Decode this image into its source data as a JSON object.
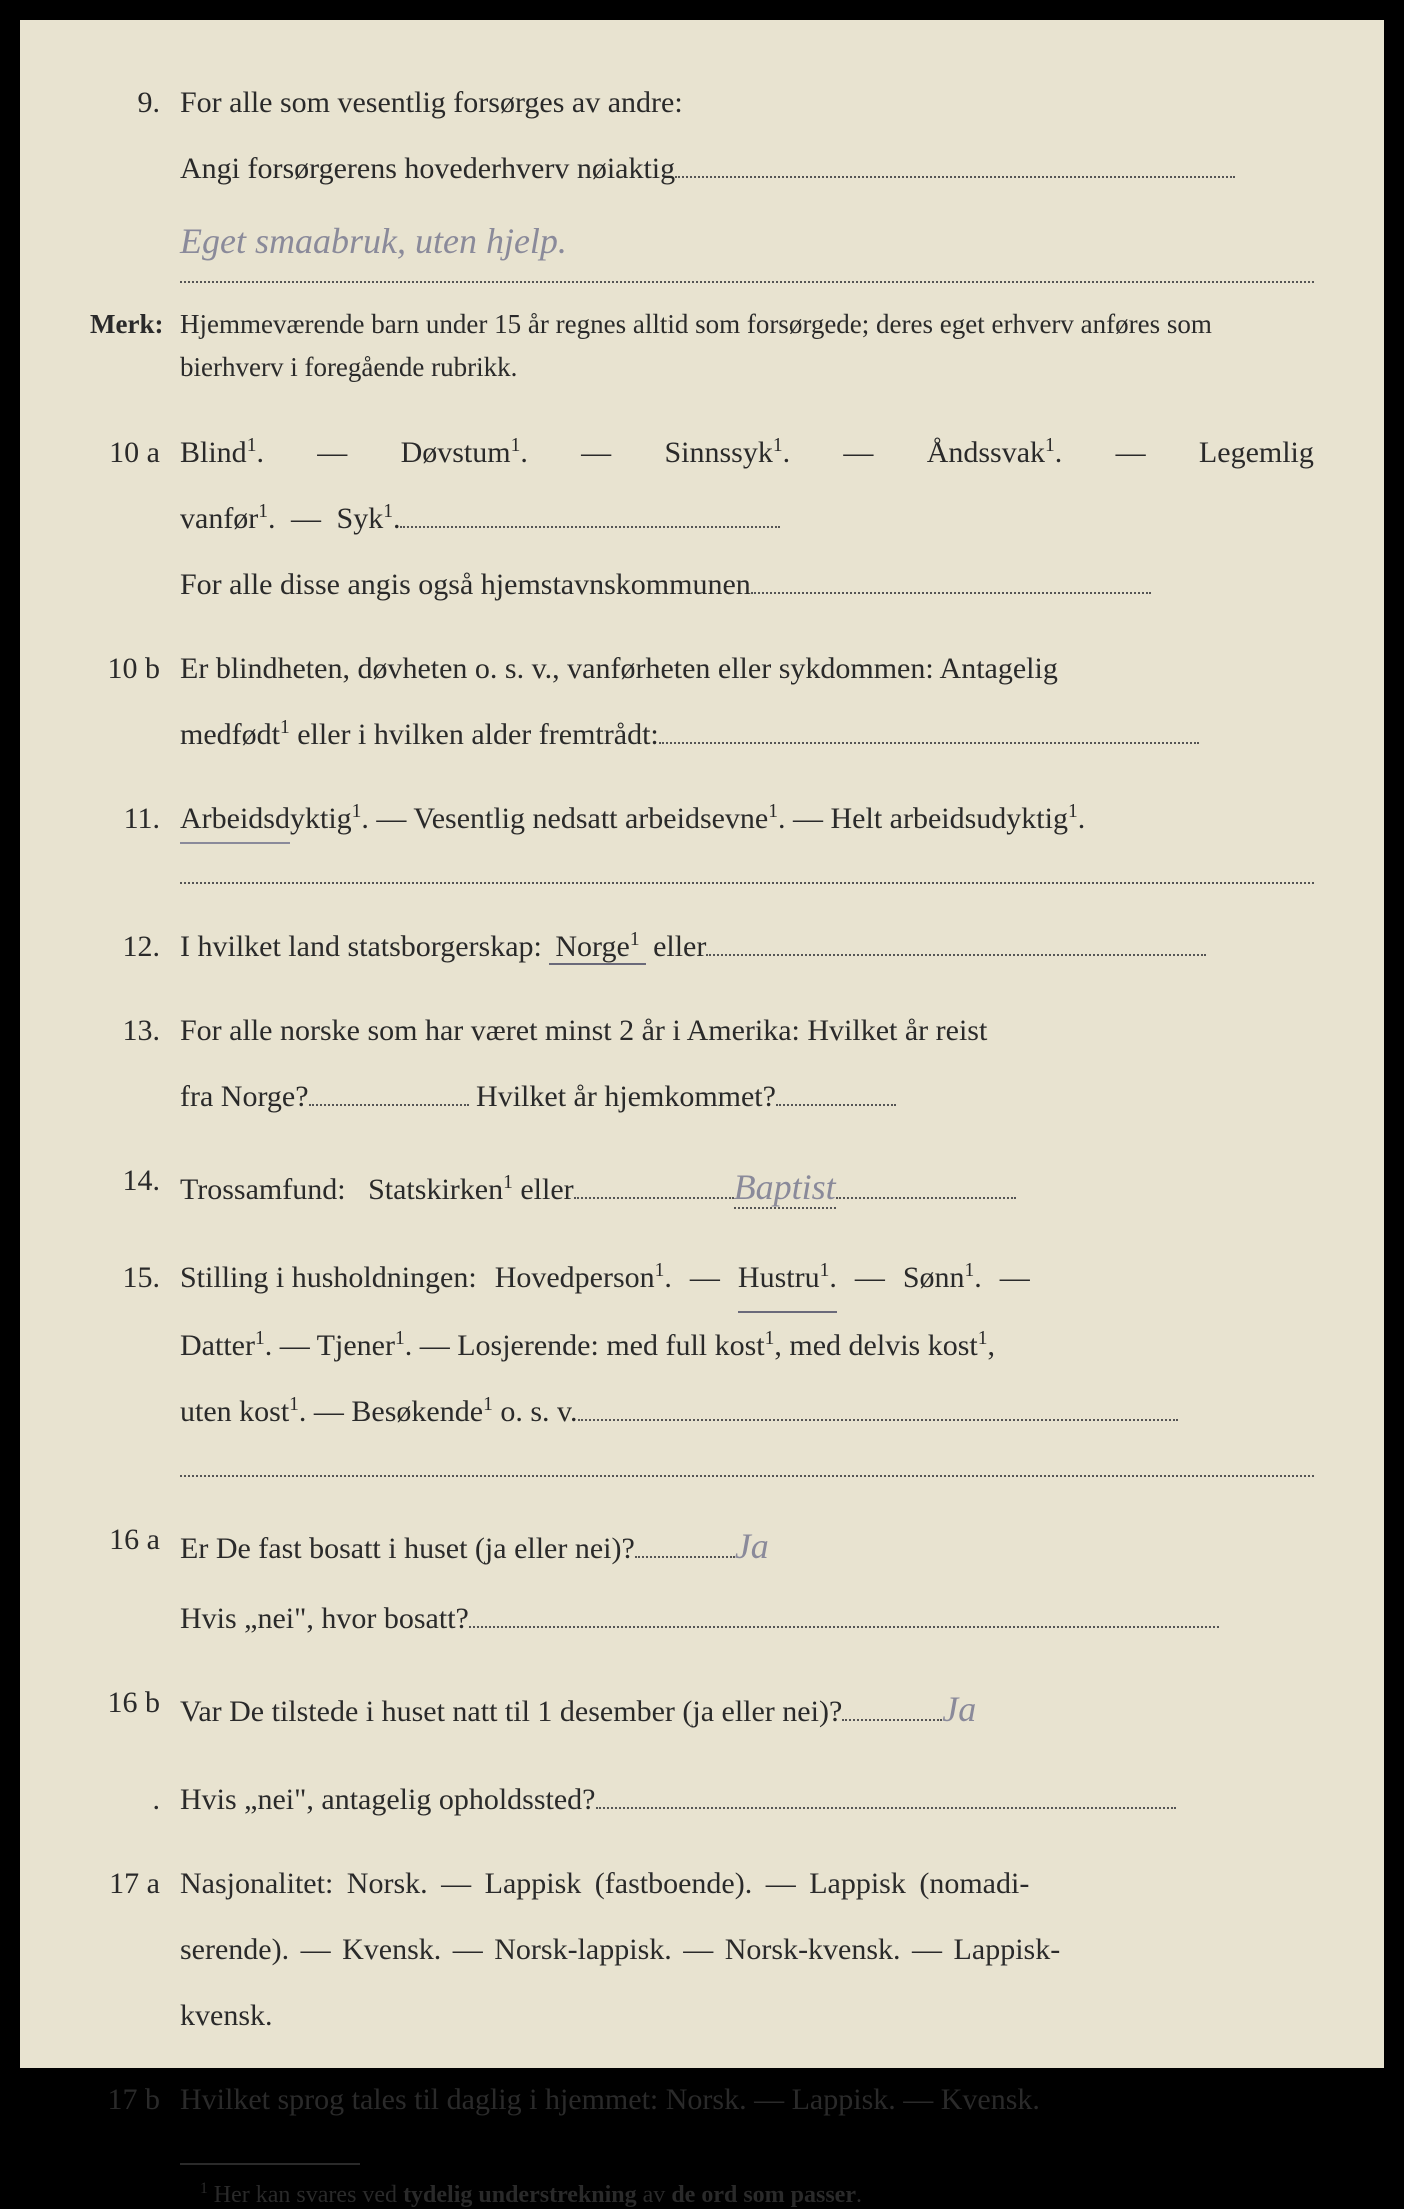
{
  "page_bg": "#e8e3d0",
  "text_color": "#2a2a2a",
  "handwriting_color": "#8a8a9a",
  "items": {
    "q9": {
      "num": "9.",
      "line1": "For alle som vesentlig forsørges av andre:",
      "line2": "Angi forsørgerens hovederhverv nøiaktig",
      "handwritten": "Eget smaabruk, uten hjelp."
    },
    "merk": {
      "label": "Merk:",
      "text": "Hjemmeværende barn under 15 år regnes alltid som forsørgede; deres eget erhverv anføres som bierhverv i foregående rubrikk."
    },
    "q10a": {
      "num": "10 a",
      "line1_parts": [
        "Blind¹.",
        "—",
        "Døvstum¹.",
        "—",
        "Sinnssyk¹.",
        "—",
        "Åndssvak¹.",
        "—",
        "Legemlig"
      ],
      "line2_parts": [
        "vanfør¹.",
        "—",
        "Syk¹."
      ],
      "line3": "For alle disse angis også hjemstavnskommunen"
    },
    "q10b": {
      "num": "10 b",
      "line1": "Er blindheten, døvheten o. s. v., vanførheten eller sykdommen: Antagelig",
      "line2": "medfødt¹ eller i hvilken alder fremtrådt:"
    },
    "q11": {
      "num": "11.",
      "text": "Arbeidsdyktig¹. — Vesentlig nedsatt arbeidsevne¹. — Helt arbeidsudyktig¹."
    },
    "q12": {
      "num": "12.",
      "pre": "I hvilket land statsborgerskap:",
      "opt": "Norge¹",
      "post": "eller"
    },
    "q13": {
      "num": "13.",
      "line1": "For alle norske som har været minst 2 år i Amerika: Hvilket år reist",
      "line2a": "fra Norge?",
      "line2b": "Hvilket år hjemkommet?"
    },
    "q14": {
      "num": "14.",
      "pre": "Trossamfund:",
      "opt": "Statskirken¹",
      "post": "eller",
      "handwritten": "Baptist"
    },
    "q15": {
      "num": "15.",
      "line1_pre": "Stilling i husholdningen:",
      "line1_parts": [
        "Hovedperson¹.",
        "—",
        "Hustru¹.",
        "—",
        "Sønn¹.",
        "—"
      ],
      "line2": "Datter¹. — Tjener¹. — Losjerende: med full kost¹, med delvis kost¹,",
      "line3": "uten kost¹. — Besøkende¹ o. s. v."
    },
    "q16a": {
      "num": "16 a",
      "q": "Er De fast bosatt i huset (ja eller nei)?",
      "hw": "Ja",
      "sub": "Hvis „nei\", hvor bosatt?"
    },
    "q16b": {
      "num": "16 b",
      "q": "Var De tilstede i huset natt til 1 desember (ja eller nei)?",
      "hw": "Ja",
      "sub_num": ".",
      "sub": "Hvis „nei\", antagelig opholdssted?"
    },
    "q17a": {
      "num": "17 a",
      "line1": "Nasjonalitet: Norsk. — Lappisk (fastboende). — Lappisk (nomadi-",
      "line2": "serende). — Kvensk. — Norsk-lappisk. — Norsk-kvensk. — Lappisk-",
      "line3": "kvensk."
    },
    "q17b": {
      "num": "17 b",
      "text": "Hvilket sprog tales til daglig i hjemmet: Norsk. — Lappisk. — Kvensk."
    },
    "footnote": {
      "marker": "1",
      "text": "Her kan svares ved tydelig understrekning av de ord som passer."
    }
  }
}
